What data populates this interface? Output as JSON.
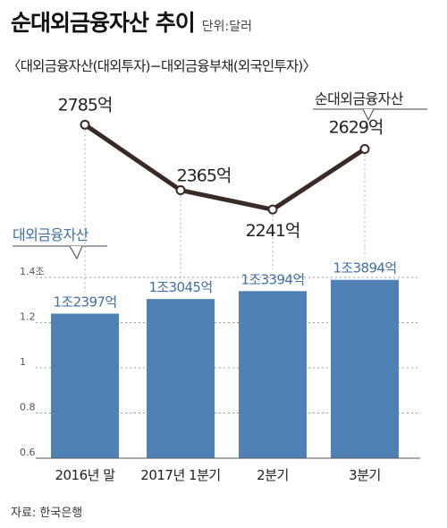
{
  "header": {
    "title": "순대외금융자산 추이",
    "unit": "단위:달러",
    "subtitle": "〈대외금융자산(대외투자)−대외금융부채(외국인투자)〉"
  },
  "source": "자료: 한국은행",
  "chart_data": [
    {
      "type": "bar",
      "series_label": "대외금융자산",
      "categories": [
        "2016년 말",
        "2017년 1분기",
        "2분기",
        "3분기"
      ],
      "values": [
        1.2397,
        1.3045,
        1.3394,
        1.3894
      ],
      "value_labels": [
        "1조2397억",
        "1조3045억",
        "1조3394억",
        "1조3894억"
      ],
      "ylim": [
        0.6,
        1.4
      ],
      "y_ticks": [
        0.6,
        0.8,
        1,
        1.2,
        1.4
      ],
      "y_tick_labels": [
        "0.6",
        "0.8",
        "1",
        "1.2",
        "1.4조"
      ],
      "grid": true,
      "color": "#4f81b4"
    },
    {
      "type": "line",
      "series_label": "순대외금융자산",
      "categories": [
        "2016년 말",
        "2017년 1분기",
        "2분기",
        "3분기"
      ],
      "values": [
        2785,
        2365,
        2241,
        2629
      ],
      "value_labels": [
        "2785억",
        "2365억",
        "2241억",
        "2629억"
      ],
      "color": "#3a2a25"
    }
  ]
}
